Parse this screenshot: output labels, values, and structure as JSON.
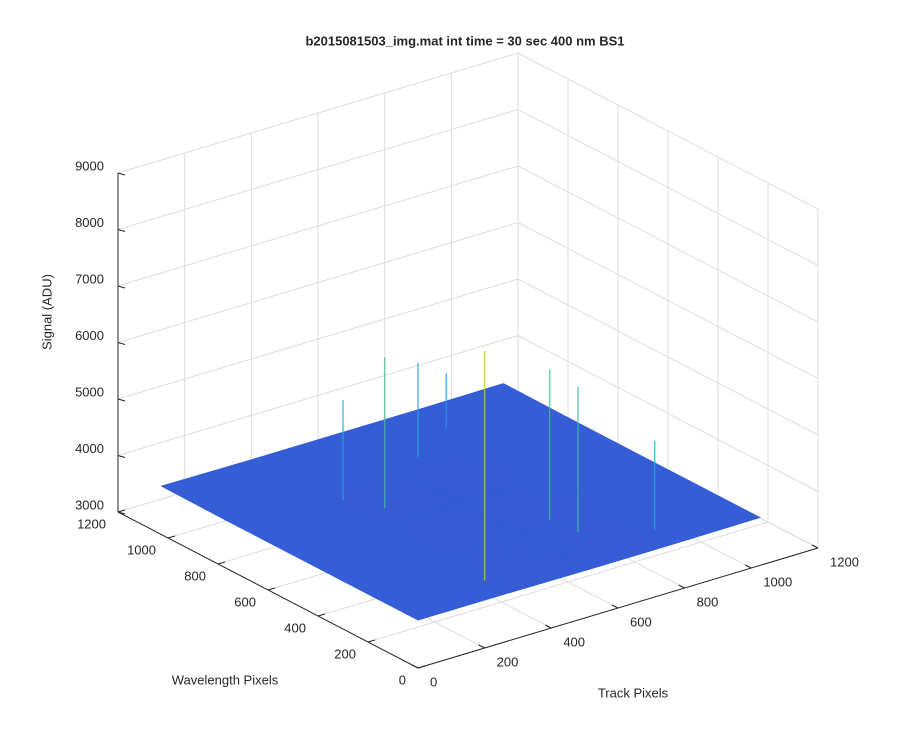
{
  "chart_data": {
    "type": "surface3d",
    "title": "b2015081503_img.mat int time = 30 sec  400 nm BS1",
    "xlabel": "Wavelength Pixels",
    "ylabel": "Track Pixels",
    "zlabel": "Signal (ADU)",
    "xlim": [
      0,
      1200
    ],
    "xticks": [
      0,
      200,
      400,
      600,
      800,
      1000,
      1200
    ],
    "ylim": [
      0,
      1200
    ],
    "yticks": [
      0,
      200,
      400,
      600,
      800,
      1000,
      1200
    ],
    "zlim": [
      3000,
      9000
    ],
    "zticks": [
      3000,
      4000,
      5000,
      6000,
      7000,
      8000,
      9000
    ],
    "grid": true,
    "colormap": "parula",
    "x": [
      1,
      256,
      512,
      768,
      1024
    ],
    "y": [
      1,
      256,
      512,
      768,
      1024
    ],
    "z": [
      [
        3850,
        3850,
        3840,
        3840,
        3850
      ],
      [
        3850,
        3840,
        3840,
        3840,
        3850
      ],
      [
        3850,
        3840,
        3830,
        3840,
        3850
      ],
      [
        3850,
        3840,
        3840,
        3840,
        3850
      ],
      [
        3860,
        3850,
        3850,
        3850,
        3860
      ]
    ],
    "spikes": {
      "x": [
        100,
        600,
        300,
        700,
        800,
        900,
        200,
        100
      ],
      "y": [
        275,
        350,
        620,
        300,
        600,
        760,
        630,
        785
      ],
      "z": [
        7900,
        6500,
        6500,
        5600,
        5500,
        4800,
        6400,
        5400
      ]
    }
  }
}
